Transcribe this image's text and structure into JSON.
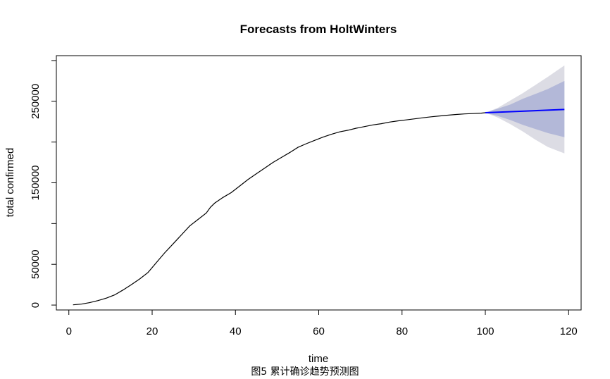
{
  "chart_data": {
    "type": "line",
    "title": "Forecasts from HoltWinters",
    "xlabel": "time",
    "ylabel": "total confirmed",
    "xlim": [
      -3,
      123
    ],
    "ylim": [
      -6000,
      306000
    ],
    "x_ticks": [
      0,
      20,
      40,
      60,
      80,
      100,
      120
    ],
    "y_ticks": [
      0,
      50000,
      150000,
      250000
    ],
    "grid": false,
    "series": [
      {
        "role": "observed",
        "color": "#000000",
        "x": [
          1,
          3,
          5,
          7,
          9,
          11,
          13,
          15,
          17,
          19,
          21,
          23,
          25,
          27,
          29,
          31,
          33,
          34,
          35,
          37,
          39,
          41,
          43,
          45,
          47,
          49,
          51,
          53,
          55,
          57,
          59,
          61,
          63,
          65,
          67,
          69,
          71,
          73,
          75,
          77,
          79,
          81,
          83,
          85,
          87,
          89,
          91,
          93,
          95,
          97,
          99,
          100
        ],
        "y": [
          300,
          1200,
          3000,
          5500,
          8500,
          12500,
          18500,
          25000,
          32000,
          40000,
          52000,
          64000,
          75000,
          86000,
          97000,
          105000,
          113000,
          120000,
          125000,
          132000,
          138000,
          146000,
          154000,
          161000,
          168000,
          175000,
          181000,
          187000,
          193500,
          198000,
          202000,
          206000,
          209500,
          212500,
          214500,
          217000,
          219000,
          221000,
          222500,
          224500,
          226000,
          227200,
          228500,
          229800,
          231000,
          232000,
          233000,
          233800,
          234500,
          235000,
          235500,
          236000
        ]
      },
      {
        "role": "forecast",
        "color": "#0000ff",
        "x": [
          100,
          119
        ],
        "y": [
          236000,
          240000
        ]
      }
    ],
    "intervals": [
      {
        "level": "95%",
        "color": "#dcdce4",
        "x": [
          100,
          103,
          106,
          109,
          112,
          115,
          119
        ],
        "lower": [
          236000,
          230000,
          222000,
          213000,
          203000,
          194000,
          186000
        ],
        "upper": [
          236000,
          242000,
          251000,
          260000,
          270000,
          280000,
          294000
        ]
      },
      {
        "level": "80%",
        "color": "#b3b8d8",
        "x": [
          100,
          103,
          106,
          109,
          112,
          115,
          119
        ],
        "lower": [
          236000,
          232000,
          227000,
          221000,
          216000,
          211000,
          206000
        ],
        "upper": [
          236000,
          241000,
          246000,
          253000,
          259000,
          265000,
          275000
        ]
      }
    ]
  },
  "caption": "图5 累计确诊趋势预测图"
}
